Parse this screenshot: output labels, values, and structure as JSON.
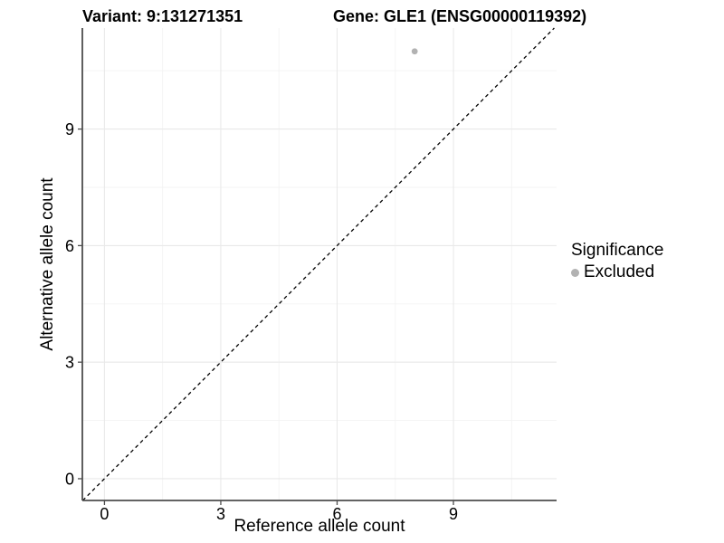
{
  "chart_data": {
    "type": "scatter",
    "titles": {
      "variant": "Variant: 9:131271351",
      "gene": "Gene: GLE1 (ENSG00000119392)"
    },
    "xlabel": "Reference allele count",
    "ylabel": "Alternative allele count",
    "axes": {
      "x_ticks": [
        0,
        3,
        6,
        9
      ],
      "y_ticks": [
        0,
        3,
        6,
        9
      ],
      "x_minor": [
        1.5,
        4.5,
        7.5,
        10.5
      ],
      "y_minor": [
        1.5,
        4.5,
        7.5,
        10.5
      ],
      "xlim": [
        -0.57,
        11.66
      ],
      "ylim": [
        -0.56,
        11.6
      ],
      "grid": true
    },
    "points": [
      {
        "x": 8,
        "y": 11,
        "significance": "Excluded"
      }
    ],
    "identity_line": {
      "slope": 1,
      "intercept": 0,
      "style": "dashed"
    },
    "legend": {
      "title": "Significance",
      "position": "right",
      "items": [
        {
          "label": "Excluded",
          "color": "#b2b2b2"
        }
      ]
    },
    "colors": {
      "point": "#b2b2b2",
      "grid_major": "#e9e9e9",
      "grid_minor": "#f3f3f3",
      "axis_line": "#4d4d4d",
      "identity_line": "#000000",
      "background": "#ffffff"
    }
  }
}
